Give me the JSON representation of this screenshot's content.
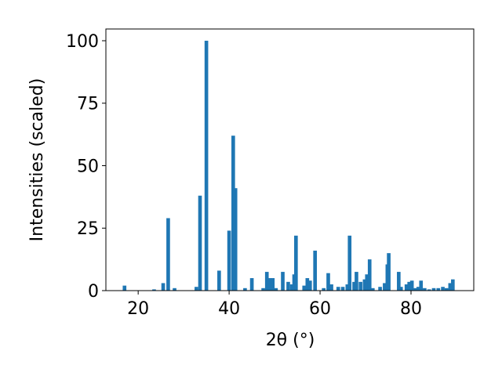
{
  "chart_data": {
    "type": "bar",
    "xlabel": "2θ (°)",
    "ylabel": "Intensities (scaled)",
    "color": "#1f77b4",
    "x": [
      17,
      23.5,
      25.5,
      26.6,
      28,
      32.8,
      33.6,
      35,
      37.8,
      40,
      40.9,
      41.4,
      43.5,
      45,
      47.5,
      48.3,
      49,
      49.6,
      50.3,
      51.8,
      53,
      53.8,
      54.3,
      54.7,
      56.5,
      57.2,
      57.8,
      58.9,
      60.8,
      61.8,
      62.5,
      64,
      65,
      66,
      66.5,
      67.5,
      68,
      68.9,
      69.8,
      70.3,
      70.9,
      71.6,
      73.2,
      74.2,
      74.8,
      75.1,
      77.3,
      77.8,
      79,
      79.6,
      80.2,
      81,
      81.6,
      82.2,
      83,
      84,
      85,
      86,
      87,
      87.8,
      88.6,
      89.2
    ],
    "values": [
      2,
      0.5,
      3,
      29,
      1,
      1.5,
      38,
      100,
      8,
      24,
      62,
      41,
      1,
      5,
      1,
      7.5,
      5,
      5,
      1,
      7.5,
      3.5,
      2.5,
      6.5,
      22,
      2,
      5,
      4,
      16,
      1,
      7,
      2.5,
      1.5,
      1.5,
      2.5,
      22,
      3.5,
      7.5,
      3.5,
      4.5,
      6.5,
      12.5,
      1,
      1.5,
      3,
      10.5,
      15,
      7.5,
      1.5,
      2.5,
      3.5,
      4,
      1,
      1.5,
      4,
      1,
      0.5,
      1,
      1,
      1.5,
      1,
      3,
      4.5
    ],
    "xlim": [
      12.9,
      93.8
    ],
    "ylim": [
      0,
      104.7
    ],
    "xticks": [
      20,
      40,
      60,
      80
    ],
    "yticks": [
      0,
      25,
      50,
      75,
      100
    ]
  }
}
